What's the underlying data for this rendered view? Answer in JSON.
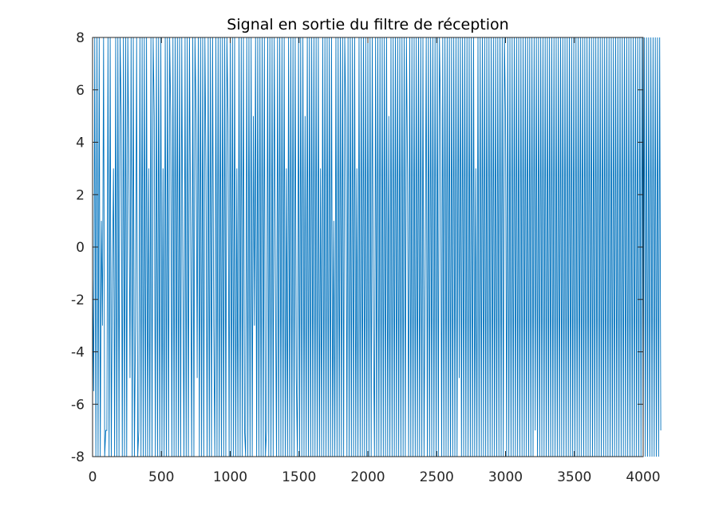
{
  "chart_data": {
    "type": "line",
    "title": "Signal en sortie du filtre de réception",
    "xlabel": "",
    "ylabel": "",
    "xlim": [
      0,
      4000
    ],
    "ylim": [
      -8,
      8
    ],
    "x_ticks": [
      "0",
      "500",
      "1000",
      "1500",
      "2000",
      "2500",
      "3000",
      "3500",
      "4000"
    ],
    "y_ticks": [
      "8",
      "6",
      "4",
      "2",
      "0",
      "-2",
      "-4",
      "-6",
      "-8"
    ],
    "grid": false,
    "legend": "none",
    "series": [
      {
        "color": "#0072bd",
        "step": 8,
        "values": [
          -1,
          -5.5,
          8,
          -8,
          8,
          -8,
          8,
          -8,
          1,
          -3,
          8,
          -8,
          -7,
          -7,
          8,
          -8,
          8,
          -8,
          -1,
          3,
          -8,
          8,
          -8,
          8,
          -8,
          8,
          5,
          -8,
          8,
          -8,
          8,
          -8,
          8,
          3,
          -5,
          8,
          -8,
          8,
          -8,
          -3,
          8,
          -8,
          -7,
          8,
          -8,
          8,
          -8,
          8,
          -8,
          8,
          -8,
          3,
          -8,
          8,
          -8,
          8,
          5,
          -8,
          8,
          -8,
          8,
          -8,
          8,
          -8,
          3,
          -8,
          8,
          -8,
          8,
          -8,
          8,
          5,
          -8,
          8,
          -8,
          8,
          -8,
          8,
          -8,
          8,
          -8,
          8,
          -1,
          -8,
          8,
          -8,
          8,
          -8,
          8,
          1,
          -8,
          8,
          -8,
          8,
          5,
          -5,
          8,
          -8,
          8,
          -8,
          8,
          -8,
          8,
          3,
          -8,
          8,
          -8,
          8,
          -8,
          8,
          -3,
          -8,
          8,
          -8,
          8,
          -8,
          8,
          -8,
          8,
          -8,
          8,
          -8,
          8,
          5,
          -8,
          8,
          -8,
          8,
          -8,
          8,
          -8,
          3,
          -8,
          8,
          -8,
          8,
          -8,
          8,
          -7,
          -8,
          8,
          -8,
          8,
          -8,
          8,
          -8,
          5,
          -3,
          8,
          -8,
          8,
          -8,
          8,
          -8,
          8,
          -8,
          8,
          -8,
          -7,
          8,
          -8,
          8,
          -8,
          8,
          -8,
          8,
          -1,
          -8,
          8,
          -8,
          8,
          -8,
          8,
          -8,
          8,
          -8,
          3,
          -8,
          8,
          -8,
          8,
          -8,
          8,
          -8,
          8,
          -5,
          -8,
          8,
          -8,
          8,
          -8,
          8,
          -8,
          5,
          -8,
          8,
          -8,
          8,
          -8,
          8,
          -8,
          8,
          -8,
          8,
          -8,
          8,
          -8,
          3,
          -8,
          8,
          -8,
          8,
          -8,
          8,
          -8,
          8,
          -8,
          8,
          -8,
          1,
          -8,
          8,
          -8,
          8,
          -8,
          8,
          -8,
          8,
          -8,
          8,
          5,
          -8,
          8,
          -8,
          8,
          -8,
          8,
          -8,
          8,
          -8,
          3,
          -8,
          8,
          -8,
          8,
          -8,
          8,
          -8,
          8,
          -8,
          8,
          -8,
          8,
          -8,
          8,
          -3,
          -8,
          8,
          -8,
          8,
          -8,
          8,
          -8,
          8,
          -8,
          8,
          -8,
          8,
          -8,
          5,
          -8,
          8,
          -8,
          8,
          -8,
          8,
          -8,
          8,
          -8,
          8,
          -8,
          8,
          -8,
          8,
          -8,
          8,
          3,
          -8,
          8,
          -8,
          8,
          -8,
          8,
          -8,
          8,
          -8,
          8,
          -8,
          8,
          -8,
          8,
          -8,
          -1,
          8,
          -8,
          8,
          -8,
          8,
          -8,
          8,
          -8,
          8,
          -8,
          8,
          -8,
          8,
          5,
          -8,
          8,
          -8,
          8,
          -8,
          8,
          -8,
          8,
          -8,
          8,
          -8,
          8,
          -8,
          8,
          -8,
          8,
          -5,
          8,
          -8,
          8,
          -8,
          8,
          -8,
          8,
          -8,
          8,
          -8,
          8,
          -8,
          8,
          -8,
          3,
          -8,
          8,
          -8,
          8,
          -8,
          8,
          -8,
          8,
          -8,
          8,
          -8,
          8,
          -8,
          8,
          -8,
          8,
          -8,
          8,
          -8,
          8,
          -8,
          8,
          -8,
          8,
          -8,
          8,
          5,
          -8,
          8,
          -8,
          8,
          -8,
          8,
          -8,
          8,
          -8,
          8,
          -8,
          8,
          -8,
          8,
          -8,
          8,
          -8,
          8,
          -8,
          8,
          -8,
          8,
          -8,
          8,
          -8,
          8,
          -7,
          8,
          -8,
          8,
          -8,
          8,
          -8,
          8,
          -8,
          8,
          -8,
          8,
          -8,
          8,
          -8,
          8,
          -8,
          8,
          -8,
          8,
          -8,
          8,
          -8,
          8,
          -8,
          8,
          -8,
          8,
          -8,
          8,
          -8,
          8,
          -8,
          8,
          -8,
          8,
          -8,
          8,
          -8,
          8,
          -8,
          8,
          -8,
          8,
          -8,
          8,
          -8,
          8,
          -8,
          8,
          -8,
          8,
          -8,
          8,
          -8,
          8,
          -8,
          8,
          -8,
          8,
          -8,
          8,
          -8,
          8,
          -8,
          8,
          -8,
          8,
          -8,
          8,
          -8,
          8,
          -8,
          8,
          -8,
          8,
          -8,
          8,
          -8,
          8,
          -8,
          8,
          -8,
          8,
          -8,
          8,
          -8,
          8,
          -8,
          8,
          -8,
          8,
          -8,
          8,
          -8,
          8,
          -8,
          8,
          -8,
          8,
          -8,
          8,
          -8,
          8,
          -8,
          8,
          -8,
          8,
          -8,
          8,
          -8,
          8,
          -8,
          8,
          -7
        ]
      }
    ]
  }
}
